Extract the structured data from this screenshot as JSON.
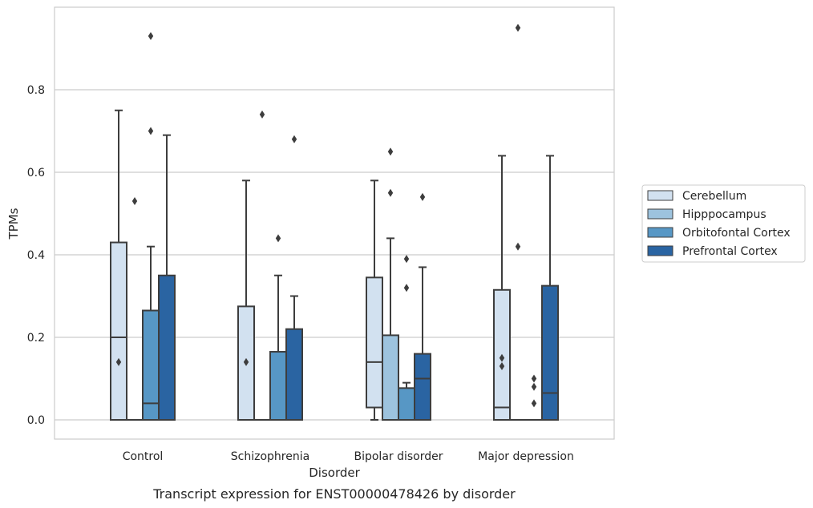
{
  "chart_data": {
    "type": "box",
    "caption": "Transcript expression for ENST00000478426 by disorder",
    "xlabel": "Disorder",
    "ylabel": "TPMs",
    "ylim": [
      -0.045,
      0.975
    ],
    "yticks": [
      0.0,
      0.2,
      0.4,
      0.6,
      0.8
    ],
    "ytick_labels": [
      "0.0",
      "0.2",
      "0.4",
      "0.6",
      "0.8"
    ],
    "grid": "horizontal",
    "legend_position": "center-right",
    "categories": [
      "Control",
      "Schizophrenia",
      "Bipolar disorder",
      "Major depression"
    ],
    "series": [
      {
        "name": "Cerebellum",
        "color": "#d2e1f0",
        "boxes": [
          {
            "category": "Control",
            "whisker_low": 0.0,
            "q1": 0.0,
            "median": 0.2,
            "q3": 0.43,
            "whisker_high": 0.75,
            "outliers": [
              0.14
            ]
          },
          {
            "category": "Schizophrenia",
            "whisker_low": 0.0,
            "q1": 0.0,
            "median": 0.0,
            "q3": 0.275,
            "whisker_high": 0.58,
            "outliers": [
              0.14
            ]
          },
          {
            "category": "Bipolar disorder",
            "whisker_low": 0.0,
            "q1": 0.03,
            "median": 0.14,
            "q3": 0.345,
            "whisker_high": 0.58,
            "outliers": []
          },
          {
            "category": "Major depression",
            "whisker_low": 0.0,
            "q1": 0.0,
            "median": 0.03,
            "q3": 0.315,
            "whisker_high": 0.64,
            "outliers": [
              0.15,
              0.13
            ]
          }
        ]
      },
      {
        "name": "Hipppocampus",
        "color": "#9dc3de",
        "boxes": [
          {
            "category": "Control",
            "whisker_low": 0.0,
            "q1": 0.0,
            "median": 0.0,
            "q3": 0.0,
            "whisker_high": 0.0,
            "outliers": [
              0.53
            ]
          },
          {
            "category": "Schizophrenia",
            "whisker_low": 0.0,
            "q1": 0.0,
            "median": 0.0,
            "q3": 0.0,
            "whisker_high": 0.0,
            "outliers": [
              0.74
            ]
          },
          {
            "category": "Bipolar disorder",
            "whisker_low": 0.0,
            "q1": 0.0,
            "median": 0.0,
            "q3": 0.205,
            "whisker_high": 0.44,
            "outliers": [
              0.65,
              0.55
            ]
          },
          {
            "category": "Major depression",
            "whisker_low": 0.0,
            "q1": 0.0,
            "median": 0.0,
            "q3": 0.0,
            "whisker_high": 0.0,
            "outliers": [
              0.95,
              0.42
            ]
          }
        ]
      },
      {
        "name": "Orbitofontal Cortex",
        "color": "#5797c5",
        "boxes": [
          {
            "category": "Control",
            "whisker_low": 0.0,
            "q1": 0.0,
            "median": 0.04,
            "q3": 0.265,
            "whisker_high": 0.42,
            "outliers": [
              0.93,
              0.7
            ]
          },
          {
            "category": "Schizophrenia",
            "whisker_low": 0.0,
            "q1": 0.0,
            "median": 0.0,
            "q3": 0.165,
            "whisker_high": 0.35,
            "outliers": [
              0.44
            ]
          },
          {
            "category": "Bipolar disorder",
            "whisker_low": 0.0,
            "q1": 0.0,
            "median": 0.0,
            "q3": 0.077,
            "whisker_high": 0.09,
            "outliers": [
              0.39,
              0.32
            ]
          },
          {
            "category": "Major depression",
            "whisker_low": 0.0,
            "q1": 0.0,
            "median": 0.0,
            "q3": 0.0,
            "whisker_high": 0.0,
            "outliers": [
              0.1,
              0.08,
              0.04
            ]
          }
        ]
      },
      {
        "name": "Prefrontal Cortex",
        "color": "#2a64a2",
        "boxes": [
          {
            "category": "Control",
            "whisker_low": 0.0,
            "q1": 0.0,
            "median": 0.0,
            "q3": 0.35,
            "whisker_high": 0.69,
            "outliers": []
          },
          {
            "category": "Schizophrenia",
            "whisker_low": 0.0,
            "q1": 0.0,
            "median": 0.0,
            "q3": 0.22,
            "whisker_high": 0.3,
            "outliers": [
              0.68
            ]
          },
          {
            "category": "Bipolar disorder",
            "whisker_low": 0.0,
            "q1": 0.0,
            "median": 0.1,
            "q3": 0.16,
            "whisker_high": 0.37,
            "outliers": [
              0.54
            ]
          },
          {
            "category": "Major depression",
            "whisker_low": 0.0,
            "q1": 0.0,
            "median": 0.065,
            "q3": 0.325,
            "whisker_high": 0.64,
            "outliers": []
          }
        ]
      }
    ],
    "style": {
      "line_color": "#3d3d3d",
      "grid_color": "#cccccc",
      "frame_color": "#cccccc",
      "background": "#ffffff"
    }
  }
}
